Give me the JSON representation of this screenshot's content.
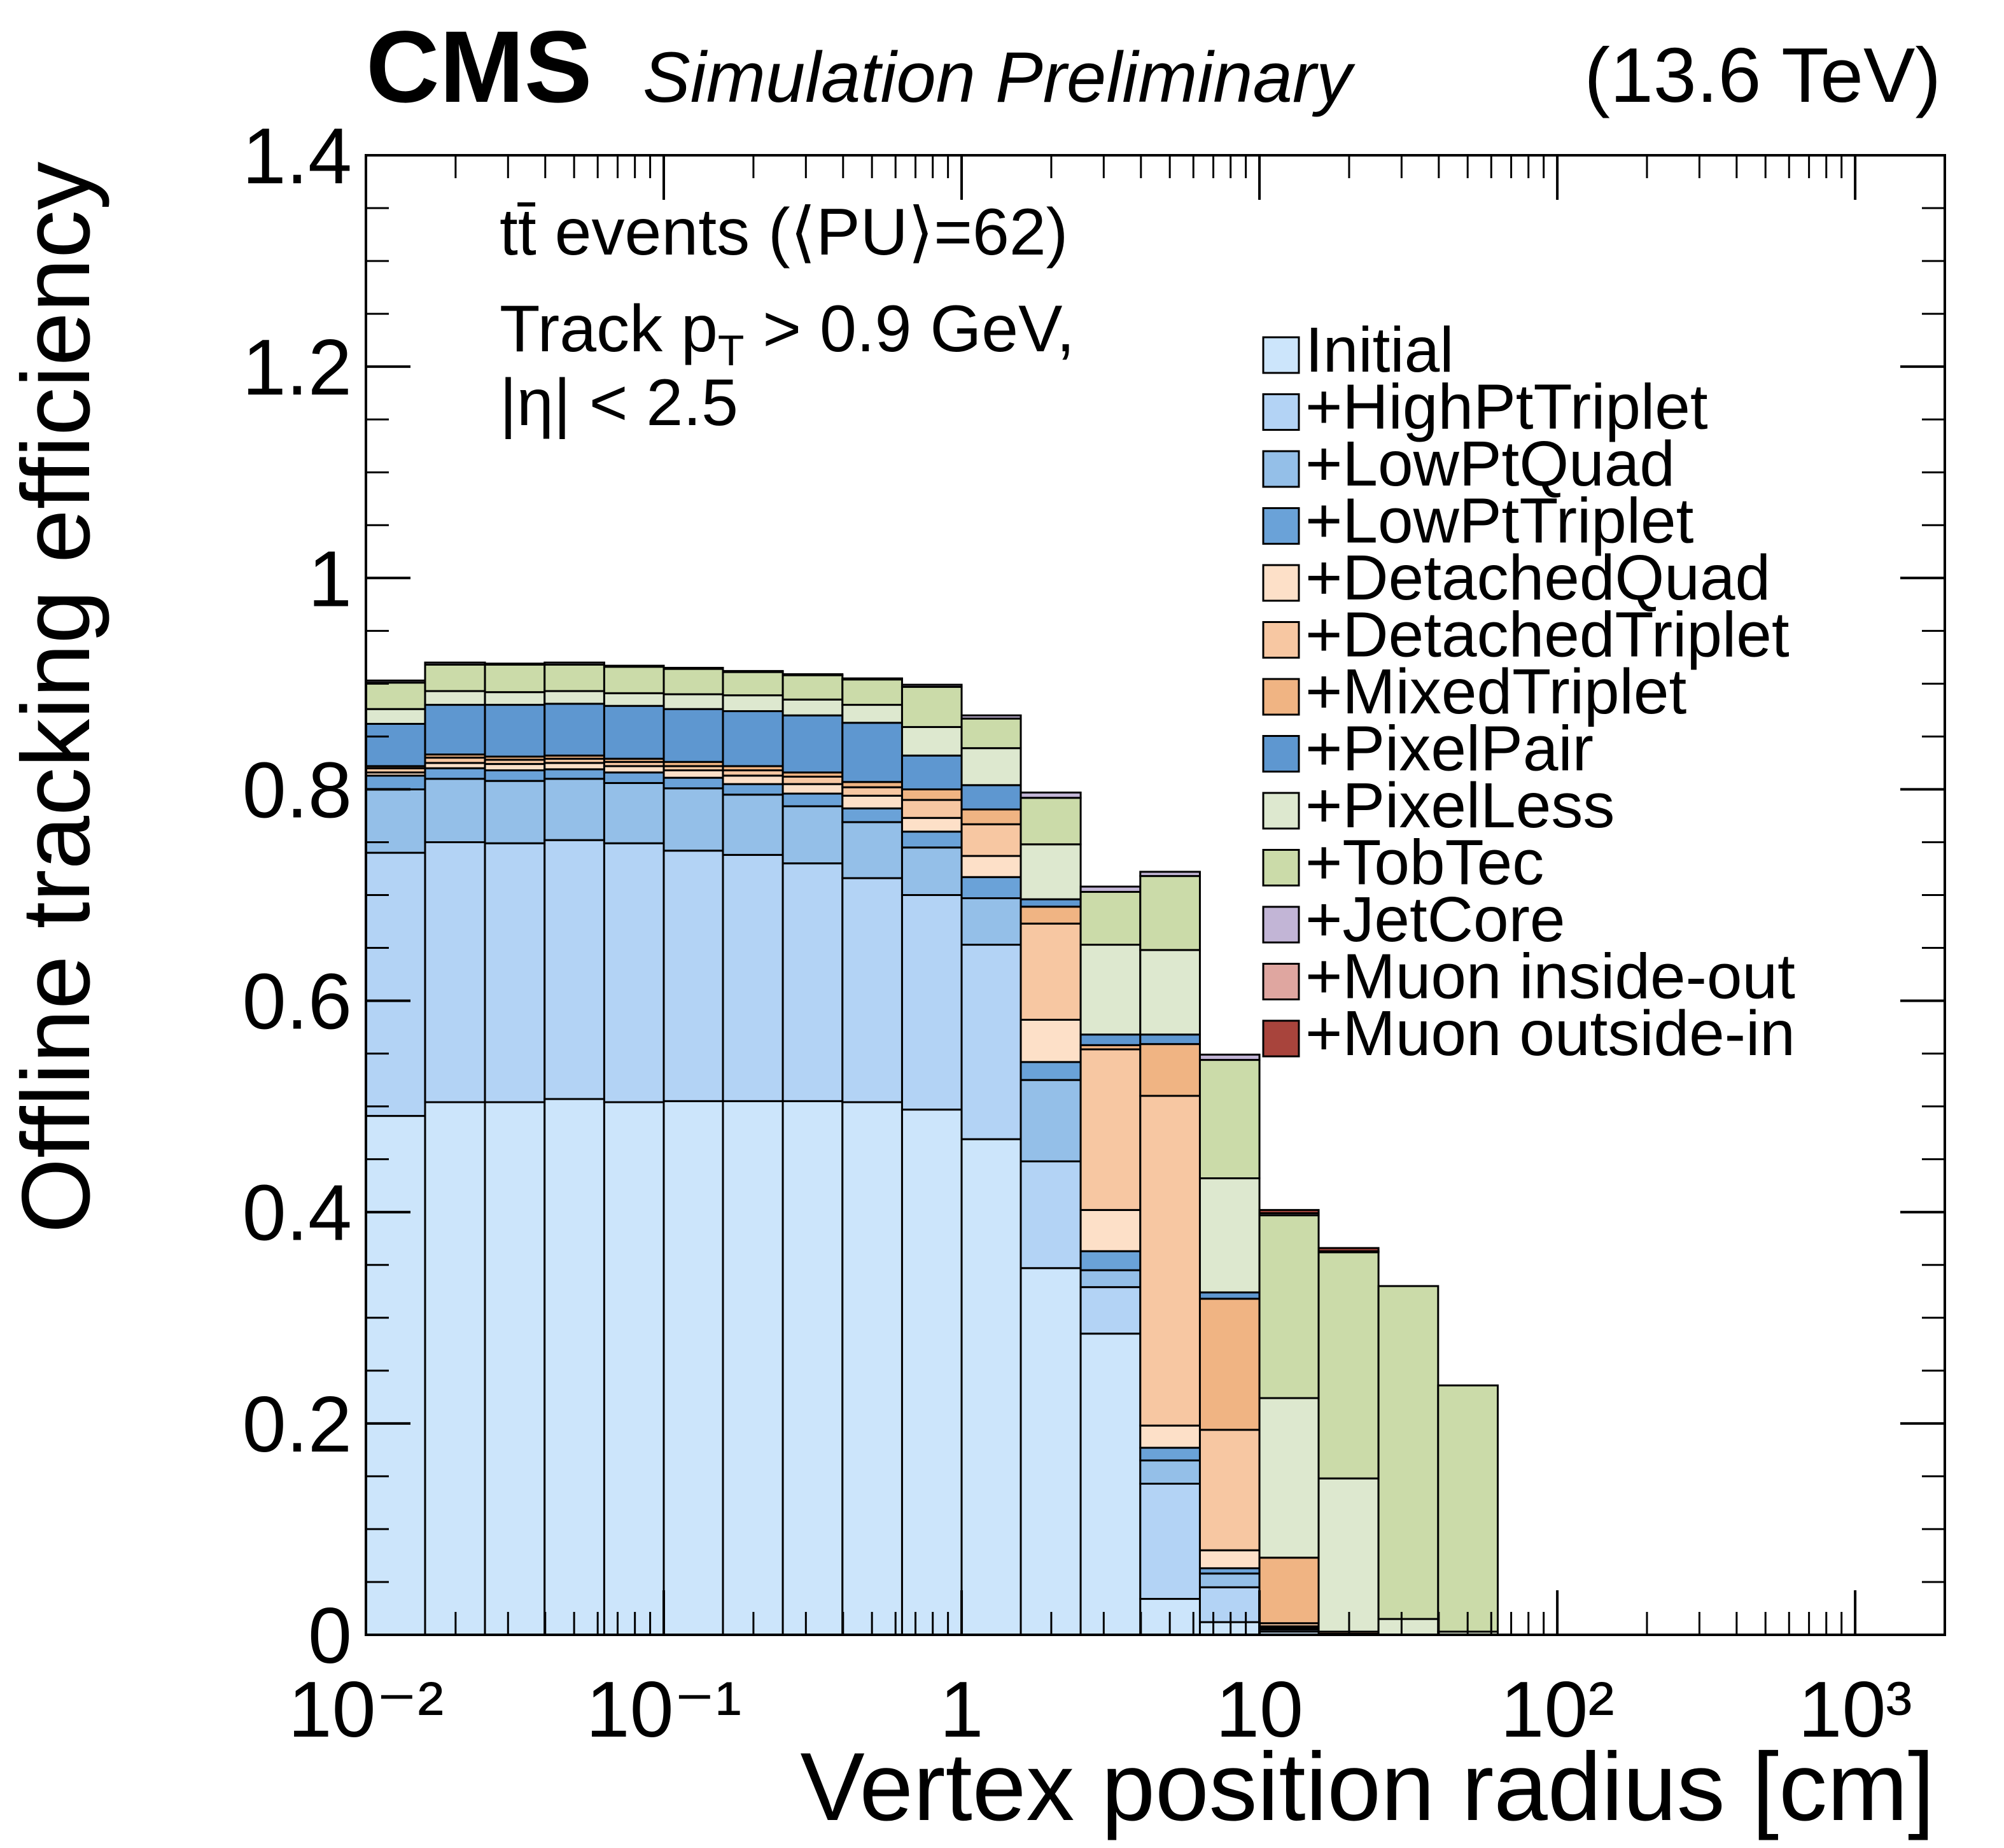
{
  "chart_data": {
    "type": "stacked_histogram",
    "title": "CMS",
    "subtitle": "Simulation Preliminary",
    "energy_label": "(13.6 TeV)",
    "annotations": [
      {
        "text": "tt̄ events (⟨PU⟩=62)"
      },
      {
        "parts": [
          "Track p",
          "T",
          " > 0.9 GeV,"
        ]
      },
      {
        "text": "|η| < 2.5"
      }
    ],
    "x_label": "Vertex position radius [cm]",
    "y_label": "Offline tracking efficiency",
    "x_log": true,
    "xlim": [
      0.01,
      2000
    ],
    "xticks": [
      {
        "value": 0.01,
        "label": "10⁻²"
      },
      {
        "value": 0.1,
        "label": "10⁻¹"
      },
      1,
      10,
      {
        "value": 100,
        "label": "10²"
      },
      {
        "value": 1000,
        "label": "10³"
      }
    ],
    "ylim": [
      0,
      1.4
    ],
    "yticks": [
      0,
      0.2,
      0.4,
      0.6,
      0.8,
      1,
      1.2,
      1.4
    ],
    "bins": [
      0.01,
      0.0158,
      0.0251,
      0.0398,
      0.0631,
      0.1,
      0.158,
      0.251,
      0.398,
      0.631,
      1,
      1.58,
      2.51,
      3.98,
      6.31,
      10,
      15.8,
      25.1,
      39.8,
      63.1
    ],
    "series": [
      {
        "name": "Initial",
        "color": "#cce5fb",
        "values": [
          0.491,
          0.504,
          0.504,
          0.507,
          0.504,
          0.505,
          0.505,
          0.505,
          0.504,
          0.497,
          0.469,
          0.347,
          0.285,
          0.034,
          0.012,
          0.003,
          0,
          0,
          0
        ]
      },
      {
        "name": "+HighPtTriplet",
        "color": "#b3d3f5",
        "values": [
          0.249,
          0.246,
          0.245,
          0.245,
          0.245,
          0.237,
          0.233,
          0.225,
          0.212,
          0.203,
          0.184,
          0.101,
          0.044,
          0.109,
          0.033,
          0.002,
          0,
          0,
          0
        ]
      },
      {
        "name": "+LowPtQuad",
        "color": "#94bfe8",
        "values": [
          0.06,
          0.06,
          0.059,
          0.058,
          0.057,
          0.059,
          0.057,
          0.054,
          0.053,
          0.045,
          0.044,
          0.077,
          0.016,
          0.022,
          0.013,
          0.001,
          0,
          0,
          0
        ]
      },
      {
        "name": "+LowPtTriplet",
        "color": "#6aa2d8",
        "values": [
          0.013,
          0.01,
          0.01,
          0.009,
          0.01,
          0.01,
          0.01,
          0.012,
          0.013,
          0.015,
          0.02,
          0.017,
          0.018,
          0.012,
          0.005,
          0.001,
          0,
          0,
          0
        ]
      },
      {
        "name": "+DetachedQuad",
        "color": "#fde0c8",
        "values": [
          0.003,
          0.005,
          0.006,
          0.006,
          0.006,
          0.007,
          0.008,
          0.009,
          0.012,
          0.013,
          0.02,
          0.04,
          0.039,
          0.021,
          0.017,
          0.001,
          0,
          0,
          0
        ]
      },
      {
        "name": "+DetachedTriplet",
        "color": "#f7c7a2",
        "values": [
          0.004,
          0.005,
          0.004,
          0.004,
          0.004,
          0.004,
          0.005,
          0.007,
          0.008,
          0.017,
          0.03,
          0.091,
          0.152,
          0.312,
          0.114,
          0.003,
          0.001,
          0,
          0
        ]
      },
      {
        "name": "+MixedTriplet",
        "color": "#f0b483",
        "values": [
          0.002,
          0.003,
          0.003,
          0.003,
          0.003,
          0.004,
          0.004,
          0.004,
          0.005,
          0.01,
          0.014,
          0.016,
          0.004,
          0.049,
          0.124,
          0.062,
          0.002,
          0,
          0
        ]
      },
      {
        "name": "+PixelPair",
        "color": "#5e97d0",
        "values": [
          0.04,
          0.047,
          0.049,
          0.049,
          0.05,
          0.05,
          0.052,
          0.054,
          0.056,
          0.032,
          0.023,
          0.007,
          0.01,
          0.009,
          0.006,
          0,
          0,
          0,
          0
        ]
      },
      {
        "name": "+PixelLess",
        "color": "#dde8cf",
        "values": [
          0.014,
          0.013,
          0.012,
          0.012,
          0.012,
          0.014,
          0.015,
          0.015,
          0.017,
          0.027,
          0.035,
          0.052,
          0.085,
          0.08,
          0.108,
          0.151,
          0.145,
          0.015,
          0.003
        ]
      },
      {
        "name": "+TobTec",
        "color": "#cbdba9",
        "values": [
          0.025,
          0.025,
          0.026,
          0.025,
          0.025,
          0.024,
          0.022,
          0.023,
          0.024,
          0.038,
          0.028,
          0.044,
          0.05,
          0.07,
          0.112,
          0.173,
          0.214,
          0.315,
          0.233
        ]
      },
      {
        "name": "+JetCore",
        "color": "#c2b5d6",
        "values": [
          0.002,
          0.002,
          0.001,
          0.002,
          0.001,
          0.001,
          0.001,
          0.001,
          0.001,
          0.002,
          0.003,
          0.005,
          0.005,
          0.004,
          0.005,
          0.002,
          0.001,
          0,
          0
        ]
      },
      {
        "name": "+Muon inside-out",
        "color": "#dfa6a0",
        "values": [
          0,
          0,
          0,
          0,
          0,
          0,
          0,
          0,
          0,
          0,
          0,
          0,
          0,
          0,
          0,
          0,
          0,
          0,
          0
        ]
      },
      {
        "name": "+Muon outside-in",
        "color": "#a8443c",
        "values": [
          0,
          0,
          0,
          0,
          0,
          0,
          0,
          0,
          0,
          0,
          0,
          0,
          0,
          0,
          0,
          0.003,
          0.003,
          0,
          0
        ]
      }
    ]
  }
}
